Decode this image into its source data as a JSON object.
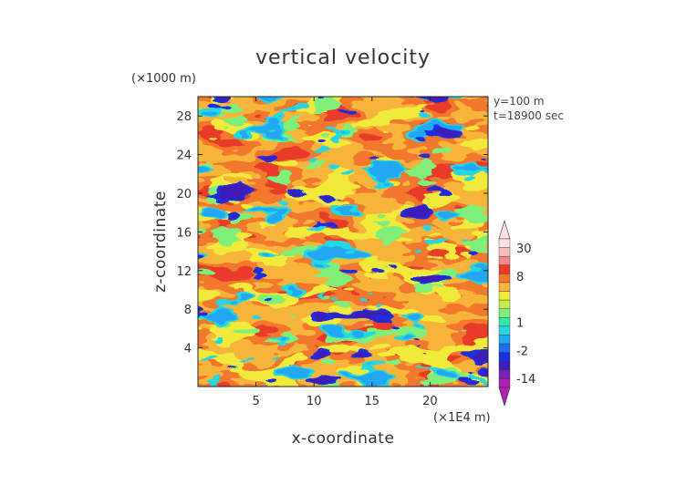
{
  "chart_data": {
    "type": "heatmap",
    "title": "vertical velocity",
    "xlabel": "x-coordinate",
    "ylabel": "z-coordinate",
    "x_unit": "(×1E4 m)",
    "y_unit": "(×1000 m)",
    "annotations": [
      "y=100 m",
      "t=18900 sec"
    ],
    "xlim": [
      0,
      25
    ],
    "ylim": [
      0,
      30
    ],
    "x_ticks": [
      5,
      10,
      15,
      20
    ],
    "y_ticks": [
      4,
      8,
      12,
      16,
      20,
      24,
      28
    ],
    "colorbar": {
      "labels": [
        30,
        8,
        1,
        -2,
        -14
      ],
      "levels": [
        -20,
        -14,
        -8,
        -4,
        -2,
        -1,
        0,
        1,
        2,
        3,
        4,
        6,
        8,
        14,
        20,
        30,
        40
      ],
      "colors": [
        "#b01fb0",
        "#7d1fb5",
        "#3e1fb8",
        "#1a2ee0",
        "#1f6cf0",
        "#21a8f2",
        "#28d6e0",
        "#33e8a5",
        "#7ef07a",
        "#c8ec4a",
        "#f1ea3a",
        "#f7b43a",
        "#f2782d",
        "#e83a2a",
        "#f08a8a",
        "#f6bcbc",
        "#fce0e0"
      ]
    },
    "note": "Field of vertical velocity at y=100 m; values cluster around 0 to 8 with scattered negative (blue/purple) columns."
  }
}
